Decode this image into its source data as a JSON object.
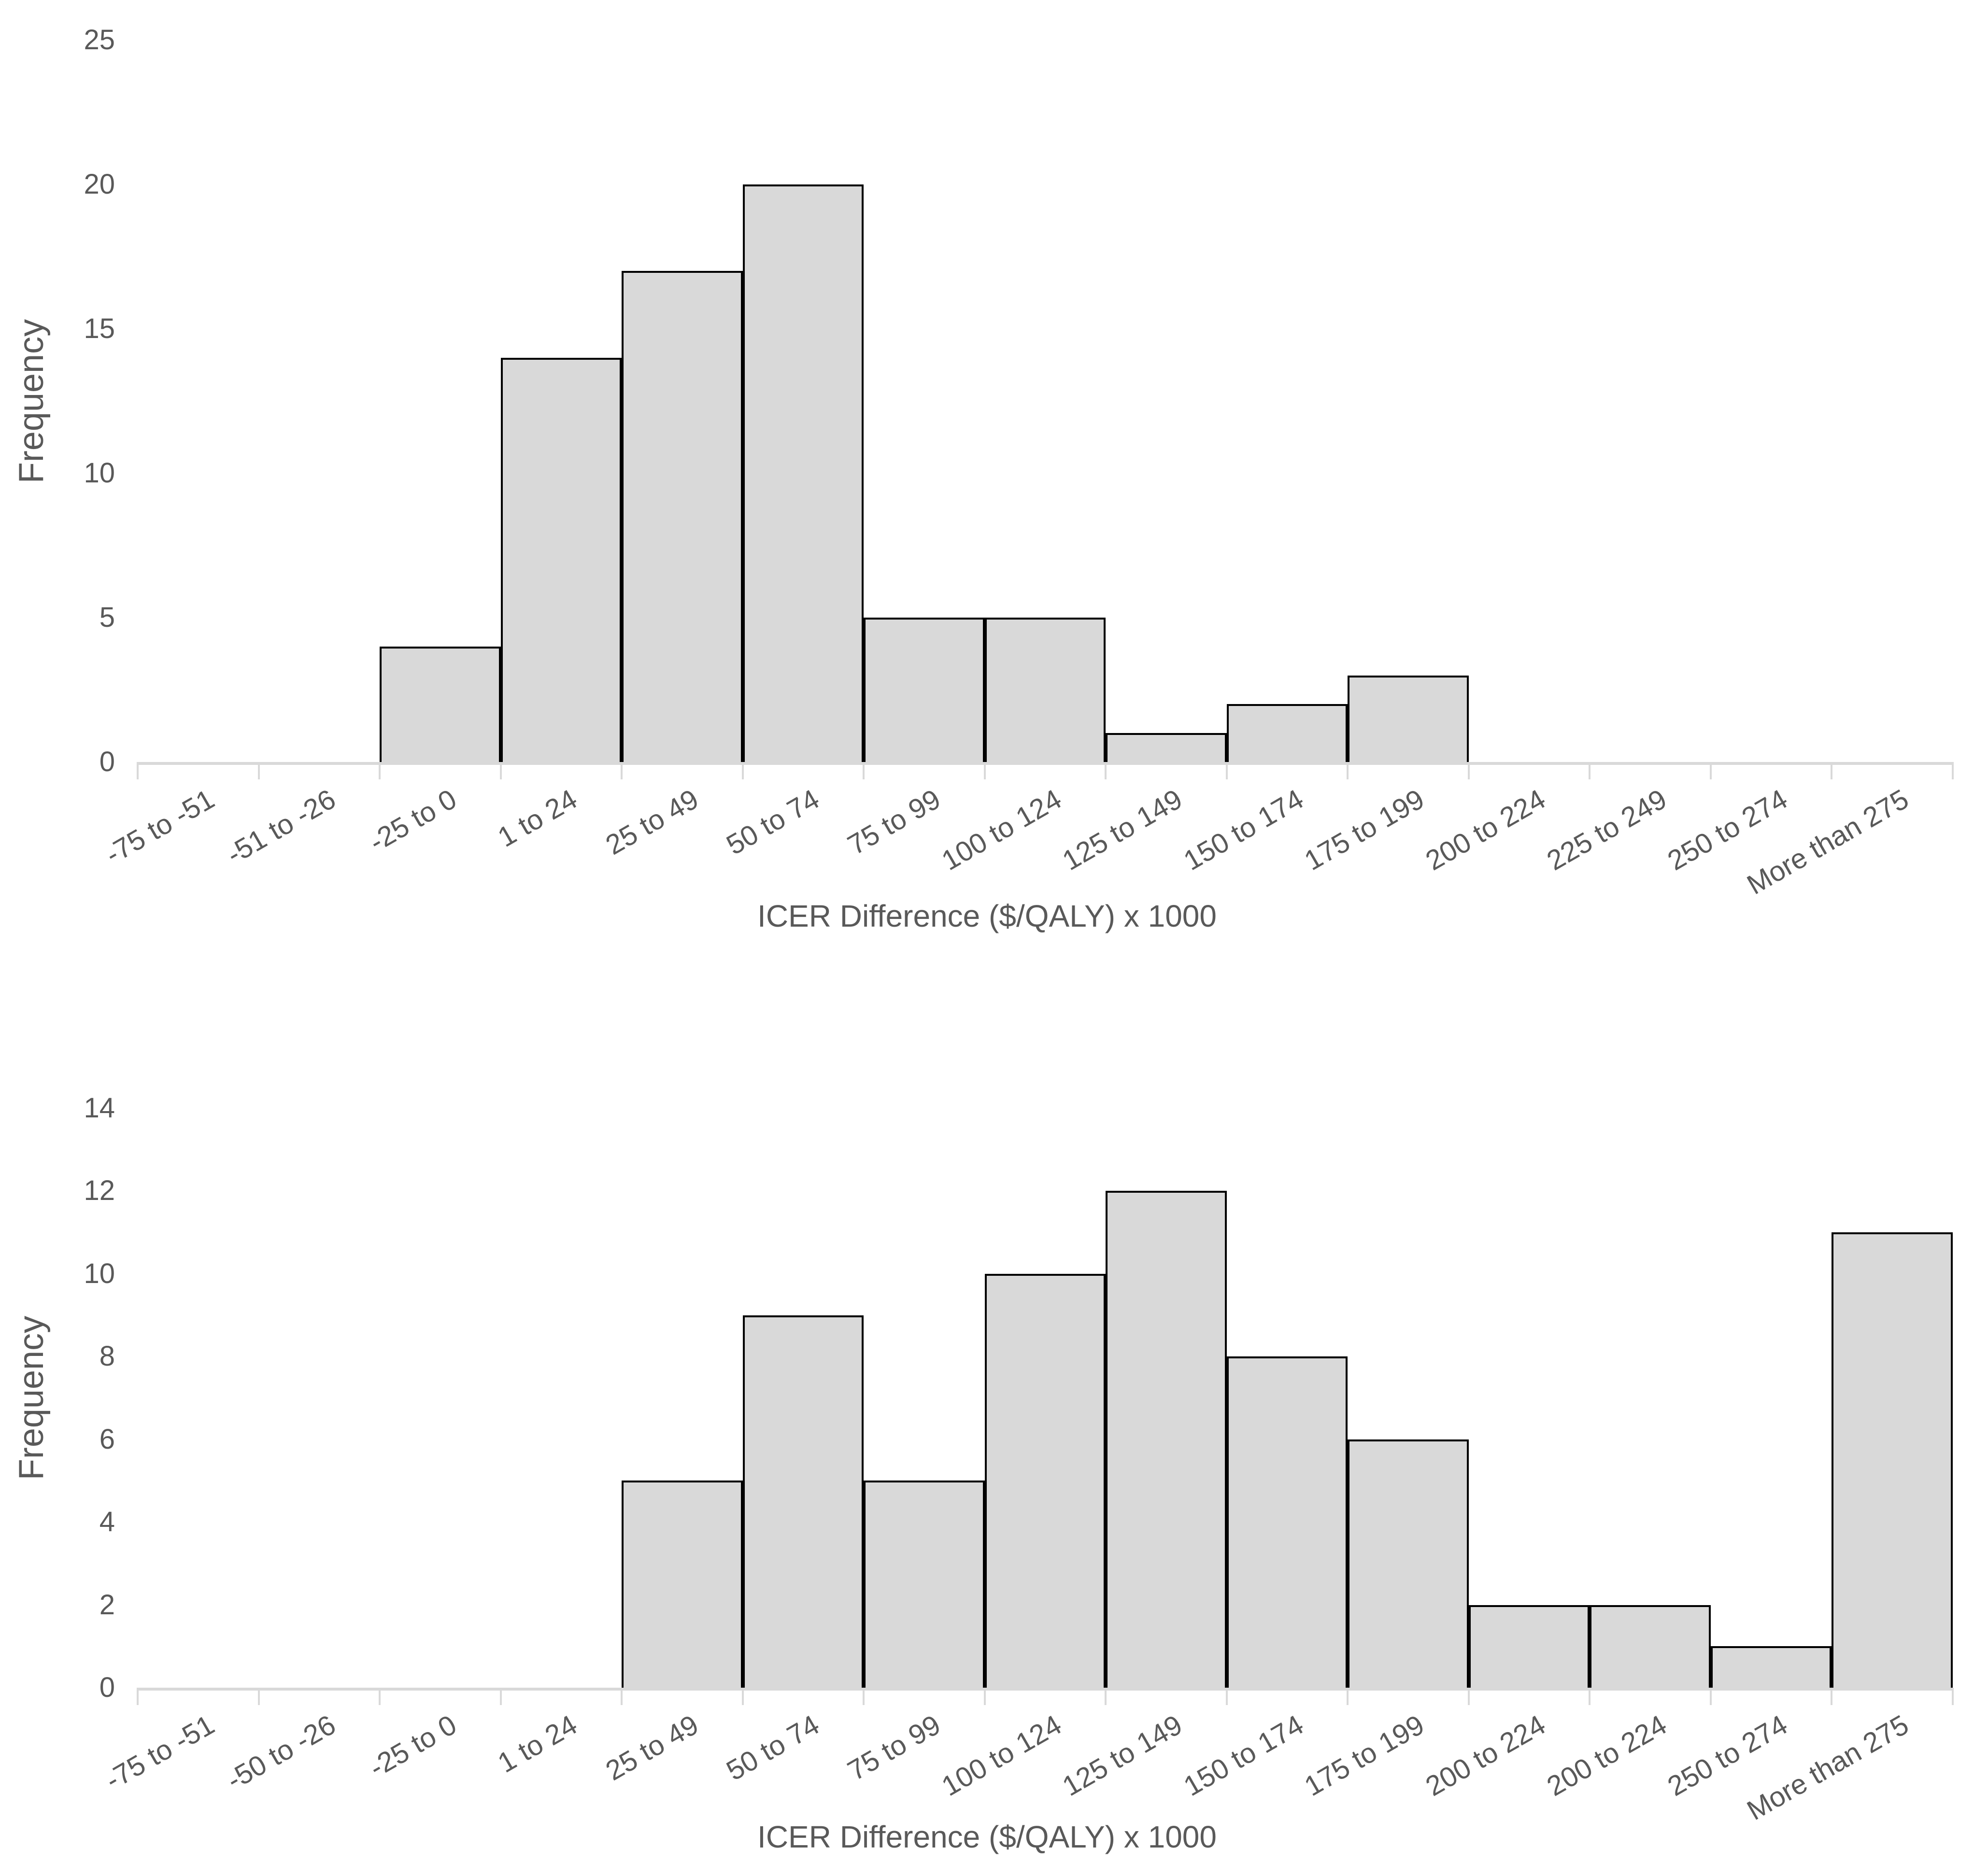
{
  "colors": {
    "bar_fill": "#d9d9d9",
    "bar_border": "#000000",
    "axis_line": "#d9d9d9",
    "label_text": "#595959",
    "background": "#ffffff"
  },
  "chart_data": [
    {
      "type": "bar",
      "subtype": "histogram",
      "title": "",
      "ylabel": "Frequency",
      "xlabel": "ICER Difference ($/QALY) x 1000",
      "categories": [
        "-75 to -51",
        "-51 to -26",
        "-25 to 0",
        "1 to 24",
        "25 to 49",
        "50 to 74",
        "75 to 99",
        "100 to 124",
        "125 to 149",
        "150 to 174",
        "175 to 199",
        "200 to 224",
        "225 to 249",
        "250 to 274",
        "More than 275"
      ],
      "values": [
        0,
        0,
        4,
        14,
        17,
        20,
        5,
        5,
        1,
        2,
        3,
        0,
        0,
        0,
        0
      ],
      "ylim": [
        0,
        25
      ],
      "yticks": [
        0,
        5,
        10,
        15,
        20,
        25
      ],
      "grid": false,
      "legend": "none",
      "x_label_rotation_deg": -30
    },
    {
      "type": "bar",
      "subtype": "histogram",
      "title": "",
      "ylabel": "Frequency",
      "xlabel": "ICER Difference ($/QALY) x 1000",
      "categories": [
        "-75 to -51",
        "-50 to -26",
        "-25 to 0",
        "1 to 24",
        "25 to 49",
        "50 to 74",
        "75 to 99",
        "100 to 124",
        "125 to 149",
        "150 to 174",
        "175 to 199",
        "200 to 224",
        "200 to 224",
        "250 to 274",
        "More than 275"
      ],
      "values": [
        0,
        0,
        0,
        0,
        5,
        9,
        5,
        10,
        12,
        8,
        6,
        2,
        2,
        1,
        11
      ],
      "ylim": [
        0,
        14
      ],
      "yticks": [
        0,
        2,
        4,
        6,
        8,
        10,
        12,
        14
      ],
      "grid": false,
      "legend": "none",
      "x_label_rotation_deg": -30
    }
  ]
}
